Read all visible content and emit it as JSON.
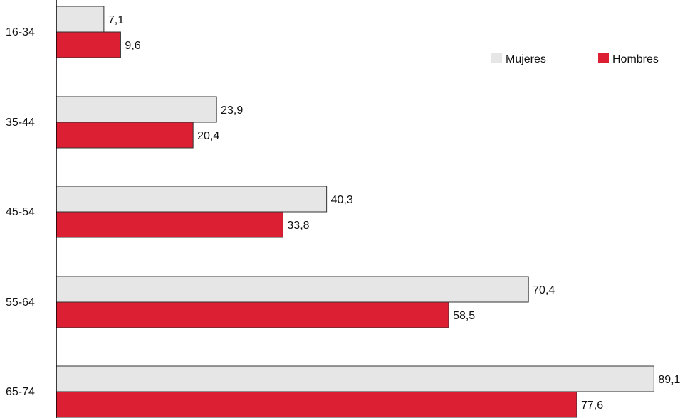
{
  "chart_data": {
    "type": "bar",
    "orientation": "horizontal",
    "categories": [
      "16-34",
      "35-44",
      "45-54",
      "55-64",
      "65-74"
    ],
    "series": [
      {
        "name": "Mujeres",
        "color": "#e6e6e6",
        "values": [
          7.1,
          23.9,
          40.3,
          70.4,
          89.1
        ],
        "labels": [
          "7,1",
          "23,9",
          "40,3",
          "70,4",
          "89,1"
        ]
      },
      {
        "name": "Hombres",
        "color": "#dc1f32",
        "values": [
          9.6,
          20.4,
          33.8,
          58.5,
          77.6
        ],
        "labels": [
          "9,6",
          "20,4",
          "33,8",
          "58,5",
          "77,6"
        ]
      }
    ],
    "title": "",
    "xlabel": "",
    "ylabel": "",
    "xlim": [
      0,
      89.1
    ],
    "grid": false,
    "legend_position": "top-right",
    "axis_color": "#000000",
    "bar_outline_color": "#333333"
  }
}
